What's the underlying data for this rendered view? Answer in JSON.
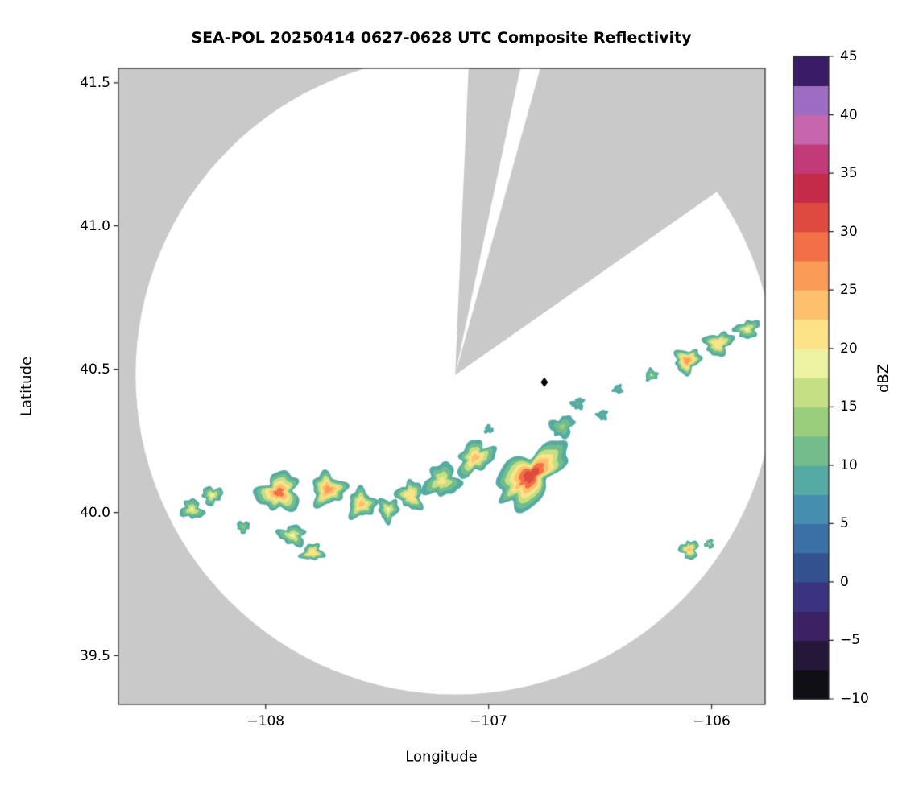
{
  "chart_data": {
    "type": "heatmap",
    "subtype": "radar-composite-reflectivity",
    "title": "SEA-POL 20250414 0627-0628 UTC Composite Reflectivity",
    "xlabel": "Longitude",
    "ylabel": "Latitude",
    "xlim": [
      -108.66,
      -105.76
    ],
    "ylim": [
      39.33,
      41.55
    ],
    "xticks": [
      -108,
      -107,
      -106
    ],
    "xtick_labels": [
      "−108",
      "−107",
      "−106"
    ],
    "yticks": [
      39.5,
      40.0,
      40.5,
      41.0,
      41.5
    ],
    "ytick_labels": [
      "39.5",
      "40.0",
      "40.5",
      "41.0",
      "41.5"
    ],
    "grid": false,
    "background_outside_color": "#c9c9c9",
    "coverage": {
      "center_lon": -107.15,
      "center_lat": 40.48,
      "radius_deg_lat": 1.115,
      "color": "#ffffff"
    },
    "blocked_sectors": [
      {
        "az_start": 2.5,
        "az_end": 12
      },
      {
        "az_start": 15.5,
        "az_end": 55
      }
    ],
    "radar_marker": {
      "lon": -106.75,
      "lat": 40.455,
      "symbol": "diamond",
      "color": "#000000"
    },
    "colorbar": {
      "label": "dBZ",
      "min": -10,
      "max": 45,
      "step": 2.5,
      "ticks": [
        -10,
        -5,
        0,
        5,
        10,
        15,
        20,
        25,
        30,
        35,
        40,
        45
      ],
      "tick_labels": [
        "−10",
        "−5",
        "0",
        "5",
        "10",
        "15",
        "20",
        "25",
        "30",
        "35",
        "40",
        "45"
      ],
      "colors": [
        "#101014",
        "#251739",
        "#3a2264",
        "#3b3380",
        "#33518f",
        "#3b70a6",
        "#458eb0",
        "#55aba4",
        "#73bd8a",
        "#9bce7c",
        "#c5e084",
        "#ecf2a2",
        "#fce388",
        "#fdc16e",
        "#fb9b58",
        "#f37046",
        "#de4a40",
        "#c42b48",
        "#c23a78",
        "#c566ae",
        "#9e6cc3",
        "#3a1c66"
      ]
    },
    "cells": [
      {
        "lon": -108.33,
        "lat": 40.01,
        "rx": 0.05,
        "ry": 0.033,
        "rot": -20,
        "max_dbz": 18,
        "seed": 1
      },
      {
        "lon": -108.24,
        "lat": 40.06,
        "rx": 0.045,
        "ry": 0.03,
        "rot": 10,
        "max_dbz": 19,
        "seed": 2
      },
      {
        "lon": -108.1,
        "lat": 39.95,
        "rx": 0.028,
        "ry": 0.02,
        "rot": 0,
        "max_dbz": 14,
        "seed": 3
      },
      {
        "lon": -107.94,
        "lat": 40.07,
        "rx": 0.095,
        "ry": 0.065,
        "rot": 25,
        "max_dbz": 28,
        "seed": 4
      },
      {
        "lon": -107.88,
        "lat": 39.92,
        "rx": 0.06,
        "ry": 0.035,
        "rot": -10,
        "max_dbz": 18,
        "seed": 5
      },
      {
        "lon": -107.79,
        "lat": 39.86,
        "rx": 0.05,
        "ry": 0.028,
        "rot": 5,
        "max_dbz": 21,
        "seed": 6
      },
      {
        "lon": -107.72,
        "lat": 40.08,
        "rx": 0.075,
        "ry": 0.055,
        "rot": 15,
        "max_dbz": 26,
        "seed": 7
      },
      {
        "lon": -107.57,
        "lat": 40.03,
        "rx": 0.06,
        "ry": 0.05,
        "rot": -15,
        "max_dbz": 24,
        "seed": 8
      },
      {
        "lon": -107.45,
        "lat": 40.01,
        "rx": 0.045,
        "ry": 0.04,
        "rot": 0,
        "max_dbz": 19,
        "seed": 9
      },
      {
        "lon": -107.35,
        "lat": 40.06,
        "rx": 0.055,
        "ry": 0.05,
        "rot": 20,
        "max_dbz": 22,
        "seed": 10
      },
      {
        "lon": -107.21,
        "lat": 40.11,
        "rx": 0.08,
        "ry": 0.055,
        "rot": 30,
        "max_dbz": 20,
        "seed": 11
      },
      {
        "lon": -107.06,
        "lat": 40.19,
        "rx": 0.09,
        "ry": 0.05,
        "rot": 38,
        "max_dbz": 23,
        "seed": 12
      },
      {
        "lon": -107.0,
        "lat": 40.29,
        "rx": 0.02,
        "ry": 0.015,
        "rot": 0,
        "max_dbz": 8,
        "seed": 13
      },
      {
        "lon": -106.81,
        "lat": 40.13,
        "rx": 0.19,
        "ry": 0.075,
        "rot": 42,
        "max_dbz": 31,
        "seed": 14
      },
      {
        "lon": -106.67,
        "lat": 40.3,
        "rx": 0.055,
        "ry": 0.035,
        "rot": 30,
        "max_dbz": 14,
        "seed": 15
      },
      {
        "lon": -106.6,
        "lat": 40.38,
        "rx": 0.03,
        "ry": 0.02,
        "rot": 20,
        "max_dbz": 12,
        "seed": 16
      },
      {
        "lon": -106.49,
        "lat": 40.34,
        "rx": 0.025,
        "ry": 0.018,
        "rot": 0,
        "max_dbz": 11,
        "seed": 17
      },
      {
        "lon": -106.42,
        "lat": 40.43,
        "rx": 0.022,
        "ry": 0.016,
        "rot": 0,
        "max_dbz": 12,
        "seed": 18
      },
      {
        "lon": -106.27,
        "lat": 40.48,
        "rx": 0.028,
        "ry": 0.02,
        "rot": 15,
        "max_dbz": 15,
        "seed": 19
      },
      {
        "lon": -106.11,
        "lat": 40.53,
        "rx": 0.06,
        "ry": 0.04,
        "rot": 30,
        "max_dbz": 26,
        "seed": 20
      },
      {
        "lon": -105.97,
        "lat": 40.59,
        "rx": 0.065,
        "ry": 0.038,
        "rot": 22,
        "max_dbz": 22,
        "seed": 21
      },
      {
        "lon": -105.84,
        "lat": 40.64,
        "rx": 0.055,
        "ry": 0.03,
        "rot": 18,
        "max_dbz": 19,
        "seed": 22
      },
      {
        "lon": -106.1,
        "lat": 39.87,
        "rx": 0.04,
        "ry": 0.032,
        "rot": 0,
        "max_dbz": 23,
        "seed": 23
      },
      {
        "lon": -106.01,
        "lat": 39.89,
        "rx": 0.02,
        "ry": 0.016,
        "rot": 0,
        "max_dbz": 15,
        "seed": 24
      }
    ]
  }
}
